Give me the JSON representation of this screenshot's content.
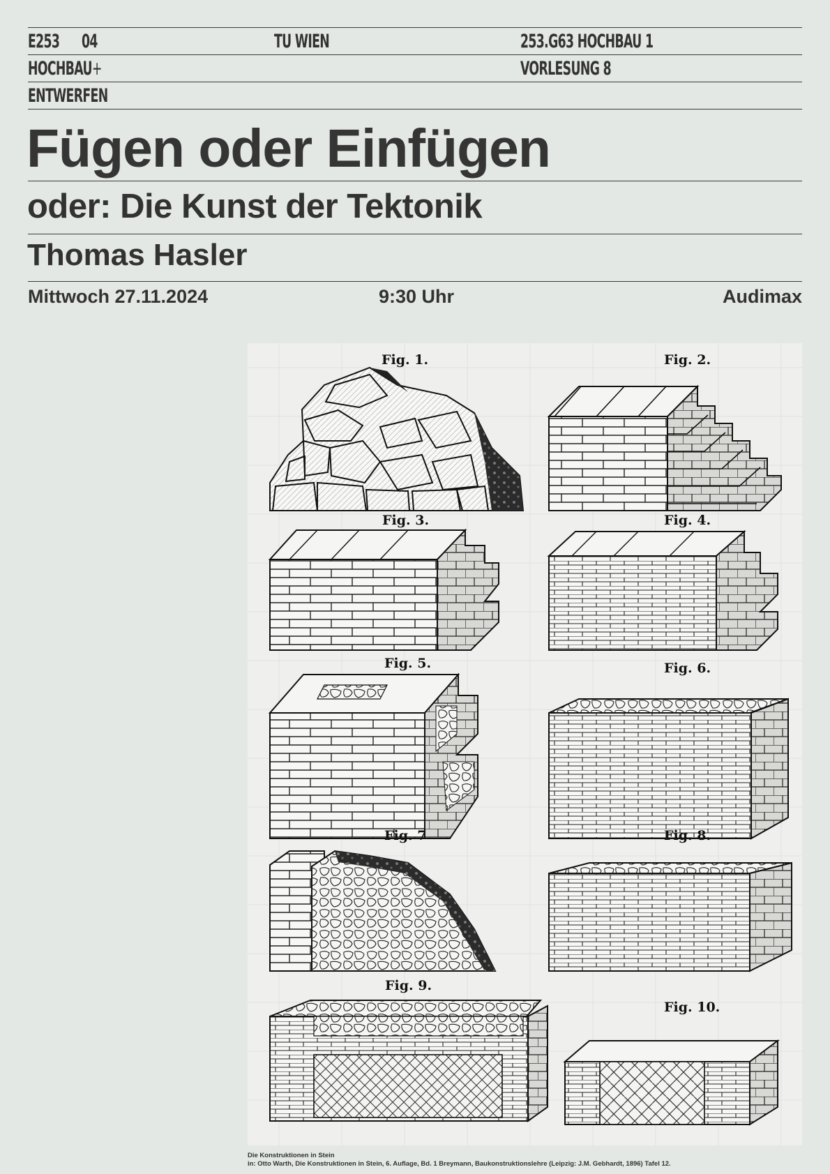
{
  "header": {
    "institute_code": "E253",
    "institute_number": "04",
    "institute_name_line1": "HOCHBAU",
    "institute_name_plus": "+",
    "institute_name_line2": "ENTWERFEN",
    "university": "TU WIEN",
    "course": "253.G63 HOCHBAU 1",
    "lecture": "VORLESUNG 8"
  },
  "title": "Fügen oder Einfügen",
  "subtitle": "oder: Die Kunst der Tektonik",
  "speaker": "Thomas Hasler",
  "event": {
    "date": "Mittwoch 27.11.2024",
    "time": "9:30 Uhr",
    "location": "Audimax"
  },
  "plate": {
    "figures": [
      "Fig. 1.",
      "Fig. 2.",
      "Fig. 3.",
      "Fig. 4.",
      "Fig. 5.",
      "Fig. 6.",
      "Fig. 7",
      "Fig. 8.",
      "Fig. 9.",
      "Fig. 10."
    ]
  },
  "caption": {
    "line1": "Die Konstruktionen in Stein",
    "line2": "in: Otto Warth, Die Konstruktionen in Stein, 6. Auflage, Bd. 1 Breymann, Baukonstruktionslehre (Leipzig: J.M. Gebhardt, 1896) Tafel 12."
  }
}
